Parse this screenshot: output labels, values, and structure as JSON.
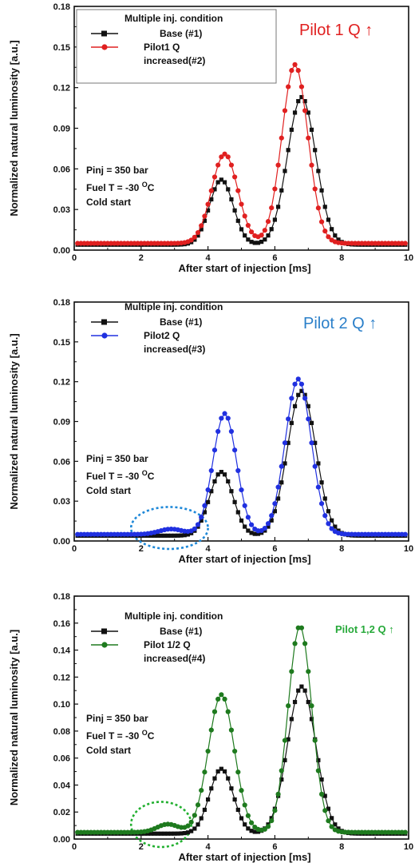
{
  "chart_data": [
    {
      "type": "line",
      "title": "Pilot 1 Q ↑",
      "title_color": "#e02020",
      "xlabel": "After start of injection [ms]",
      "ylabel": "Normalized natural luminosity [a.u.]",
      "xlim": [
        0,
        10
      ],
      "ylim": [
        0,
        0.18
      ],
      "x_ticks": [
        "0",
        "2",
        "4",
        "6",
        "8",
        "10"
      ],
      "y_ticks": [
        "0.00",
        "0.03",
        "0.06",
        "0.09",
        "0.12",
        "0.15",
        "0.18"
      ],
      "legend_title": "Multiple inj. condition",
      "legend": "top-left",
      "annotations": [
        "Pinj = 350 bar",
        "Fuel T = -30 °C",
        "Cold start"
      ],
      "series": [
        {
          "name": "Base (#1)",
          "color": "#111111",
          "marker": "square",
          "peaks": [
            [
              4.4,
              0.052,
              0.5
            ],
            [
              6.8,
              0.113,
              0.6
            ]
          ],
          "base": 0.004,
          "start": 3.0,
          "valley_end": 8.0
        },
        {
          "name": "Pilot1 Q increased(#2)",
          "color": "#e02020",
          "marker": "circle",
          "peaks": [
            [
              4.5,
              0.071,
              0.55
            ],
            [
              6.6,
              0.137,
              0.55
            ]
          ],
          "base": 0.005,
          "start": 2.8,
          "valley_end": 8.2
        }
      ]
    },
    {
      "type": "line",
      "title": "Pilot 2 Q ↑",
      "title_color": "#2a7fc9",
      "xlabel": "After start of injection [ms]",
      "ylabel": "Normalized natural luminosity [a.u.]",
      "xlim": [
        0,
        10
      ],
      "ylim": [
        0,
        0.18
      ],
      "x_ticks": [
        "0",
        "2",
        "4",
        "6",
        "8",
        "10"
      ],
      "y_ticks": [
        "0.00",
        "0.03",
        "0.06",
        "0.09",
        "0.12",
        "0.15",
        "0.18"
      ],
      "legend_title": "Multiple inj. condition",
      "legend": "top-left",
      "annotations": [
        "Pinj = 350 bar",
        "Fuel T = -30 °C",
        "Cold start"
      ],
      "highlight_ellipse": {
        "x_range": [
          1.7,
          4.0
        ],
        "y_range": [
          0.0,
          0.022
        ],
        "color": "#1e88d8"
      },
      "series": [
        {
          "name": "Base (#1)",
          "color": "#111111",
          "marker": "square",
          "peaks": [
            [
              4.4,
              0.052,
              0.5
            ],
            [
              6.8,
              0.113,
              0.6
            ]
          ],
          "base": 0.004,
          "start": 3.0,
          "valley_end": 8.0
        },
        {
          "name": "Pilot2 Q increased(#3)",
          "color": "#2030e0",
          "marker": "circle",
          "peaks": [
            [
              2.9,
              0.009,
              0.5
            ],
            [
              4.5,
              0.096,
              0.5
            ],
            [
              6.7,
              0.122,
              0.55
            ]
          ],
          "base": 0.005,
          "start": 1.8,
          "valley_end": 8.6
        }
      ]
    },
    {
      "type": "line",
      "title": "Pilot 1,2 Q ↑",
      "title_color": "#27a93a",
      "xlabel": "After start of injection [ms]",
      "ylabel": "Normalized natural luminosity [a.u.]",
      "xlim": [
        0,
        10
      ],
      "ylim": [
        0,
        0.18
      ],
      "x_ticks": [
        "0",
        "2",
        "4",
        "6",
        "8",
        "10"
      ],
      "y_ticks": [
        "0.00",
        "0.02",
        "0.04",
        "0.06",
        "0.08",
        "0.10",
        "0.12",
        "0.14",
        "0.16",
        "0.18"
      ],
      "legend_title": "Multiple inj. condition",
      "legend": "top-left",
      "annotations": [
        "Pinj = 350 bar",
        "Fuel T = -30 °C",
        "Cold start"
      ],
      "highlight_ellipse": {
        "x_range": [
          1.7,
          3.5
        ],
        "y_range": [
          0.0,
          0.024
        ],
        "color": "#22b030"
      },
      "series": [
        {
          "name": "Base (#1)",
          "color": "#111111",
          "marker": "square",
          "peaks": [
            [
              4.4,
              0.052,
              0.5
            ],
            [
              6.8,
              0.113,
              0.6
            ]
          ],
          "base": 0.004,
          "start": 3.0,
          "valley_end": 8.0
        },
        {
          "name": "Pilot 1/2 Q increased(#4)",
          "color": "#1e7a1e",
          "marker": "circle",
          "peaks": [
            [
              2.8,
              0.011,
              0.45
            ],
            [
              4.4,
              0.107,
              0.55
            ],
            [
              6.75,
              0.158,
              0.5
            ]
          ],
          "base": 0.005,
          "start": 1.8,
          "valley_end": 8.4
        }
      ]
    }
  ]
}
